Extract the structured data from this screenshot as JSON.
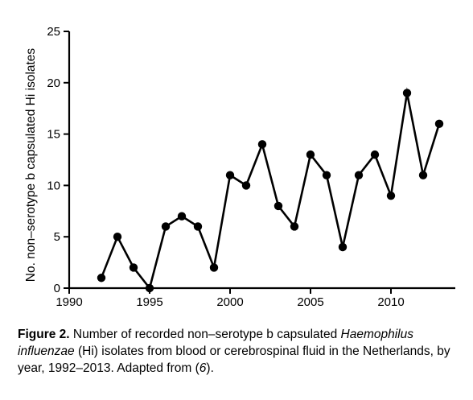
{
  "chart_data": {
    "type": "line",
    "x": [
      1992,
      1993,
      1994,
      1995,
      1996,
      1997,
      1998,
      1999,
      2000,
      2001,
      2002,
      2003,
      2004,
      2005,
      2006,
      2007,
      2008,
      2009,
      2010,
      2011,
      2012,
      2013
    ],
    "values": [
      1,
      5,
      2,
      0,
      6,
      7,
      6,
      2,
      11,
      10,
      14,
      8,
      6,
      13,
      11,
      4,
      11,
      13,
      9,
      19,
      11,
      16
    ],
    "xlim": [
      1990,
      2014
    ],
    "ylim": [
      0,
      25
    ],
    "xticks": [
      1990,
      1995,
      2000,
      2005,
      2010
    ],
    "yticks": [
      0,
      5,
      10,
      15,
      20,
      25
    ],
    "xlabel": "",
    "ylabel": "No. non–serotype b capsulated Hi isolates",
    "grid": false,
    "line_color": "#000000",
    "marker_color": "#000000"
  },
  "caption": {
    "label": "Figure 2.",
    "text1": " Number of recorded non–serotype b capsulated ",
    "species": "Haemophilus influenzae",
    "text2": " (Hi) isolates from blood or cerebrospinal fluid in the Netherlands, by year, 1992–2013. Adapted from (",
    "ref": "6",
    "text3": ")."
  }
}
